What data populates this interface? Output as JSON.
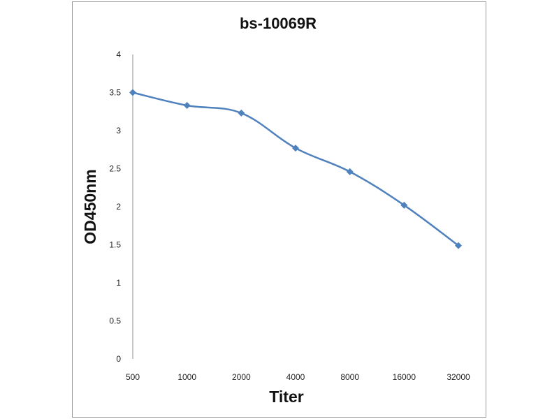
{
  "chart_data": {
    "type": "line",
    "title": "bs-10069R",
    "xlabel": "Titer",
    "ylabel": "OD450nm",
    "categories": [
      "500",
      "1000",
      "2000",
      "4000",
      "8000",
      "16000",
      "32000"
    ],
    "series": [
      {
        "values": [
          3.5,
          3.33,
          3.23,
          2.77,
          2.46,
          2.02,
          1.49
        ],
        "color": "#4f81bd",
        "marker": "diamond"
      }
    ],
    "y_ticks": [
      "0",
      "0.5",
      "1",
      "1.5",
      "2",
      "2.5",
      "3",
      "3.5",
      "4"
    ],
    "ylim": [
      0,
      4
    ],
    "grid": false,
    "legend": "none"
  }
}
